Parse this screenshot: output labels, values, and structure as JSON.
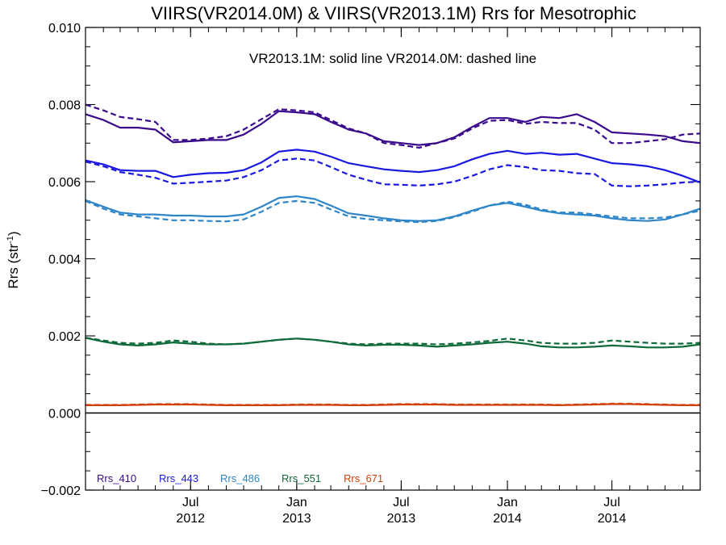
{
  "chart_data": {
    "type": "line",
    "title": "VIIRS(VR2014.0M) & VIIRS(VR2013.1M)  Rrs for Mesotrophic",
    "annotation": "VR2013.1M: solid line   VR2014.0M: dashed line",
    "ylabel_main": "Rrs (str",
    "ylabel_sup": "-1",
    "ylabel_close": ")",
    "xlim": [
      "2012-01-01",
      "2014-12-01"
    ],
    "ylim": [
      -0.002,
      0.01
    ],
    "yticks": [
      "0.010",
      "0.008",
      "0.006",
      "0.004",
      "0.002",
      "0.000",
      "−0.002"
    ],
    "xticks": [
      {
        "date": "2012-07-01",
        "month": "Jul",
        "year": "2012"
      },
      {
        "date": "2013-01-01",
        "month": "Jan",
        "year": "2013"
      },
      {
        "date": "2013-07-01",
        "month": "Jul",
        "year": "2013"
      },
      {
        "date": "2014-01-01",
        "month": "Jan",
        "year": "2014"
      },
      {
        "date": "2014-07-01",
        "month": "Jul",
        "year": "2014"
      }
    ],
    "zero_line": 0,
    "legend_placement": "bottom-left",
    "x": [
      "2012-01-01",
      "2012-02-01",
      "2012-03-01",
      "2012-04-01",
      "2012-05-01",
      "2012-06-01",
      "2012-07-01",
      "2012-08-01",
      "2012-09-01",
      "2012-10-01",
      "2012-11-01",
      "2012-12-01",
      "2013-01-01",
      "2013-02-01",
      "2013-03-01",
      "2013-04-01",
      "2013-05-01",
      "2013-06-01",
      "2013-07-01",
      "2013-08-01",
      "2013-09-01",
      "2013-10-01",
      "2013-11-01",
      "2013-12-01",
      "2014-01-01",
      "2014-02-01",
      "2014-03-01",
      "2014-04-01",
      "2014-05-01",
      "2014-06-01",
      "2014-07-01",
      "2014-08-01",
      "2014-09-01",
      "2014-10-01",
      "2014-11-01",
      "2014-12-01"
    ],
    "series": [
      {
        "name": "Rrs_410",
        "color": "#3a0a8c",
        "style": "solid",
        "values": [
          0.00775,
          0.0076,
          0.0074,
          0.0074,
          0.00735,
          0.00702,
          0.00705,
          0.00708,
          0.00708,
          0.00722,
          0.0075,
          0.00783,
          0.0078,
          0.00775,
          0.00755,
          0.00735,
          0.00725,
          0.00705,
          0.007,
          0.00695,
          0.007,
          0.00715,
          0.00742,
          0.00765,
          0.00765,
          0.00755,
          0.00768,
          0.00765,
          0.00775,
          0.00755,
          0.00728,
          0.00725,
          0.00722,
          0.00718,
          0.00705,
          0.007
        ]
      },
      {
        "name": "Rrs_410",
        "color": "#3a0a8c",
        "style": "dashed",
        "values": [
          0.008,
          0.00785,
          0.00768,
          0.00762,
          0.00755,
          0.00708,
          0.00708,
          0.00712,
          0.00718,
          0.00735,
          0.00762,
          0.00788,
          0.00785,
          0.0078,
          0.0076,
          0.00738,
          0.00725,
          0.007,
          0.00695,
          0.00688,
          0.007,
          0.00712,
          0.00738,
          0.00758,
          0.0076,
          0.0075,
          0.00755,
          0.00752,
          0.00752,
          0.00735,
          0.007,
          0.007,
          0.00705,
          0.0071,
          0.00722,
          0.00725
        ]
      },
      {
        "name": "Rrs_443",
        "color": "#1b18e0",
        "style": "solid",
        "values": [
          0.00655,
          0.00645,
          0.0063,
          0.00628,
          0.00628,
          0.00612,
          0.00618,
          0.00622,
          0.00623,
          0.0063,
          0.0065,
          0.00678,
          0.00683,
          0.00678,
          0.00665,
          0.00648,
          0.0064,
          0.00632,
          0.00628,
          0.00625,
          0.0063,
          0.0064,
          0.00658,
          0.00672,
          0.0068,
          0.00672,
          0.00675,
          0.0067,
          0.00672,
          0.0066,
          0.00648,
          0.00645,
          0.0064,
          0.0063,
          0.00615,
          0.00598
        ]
      },
      {
        "name": "Rrs_443",
        "color": "#1b18e0",
        "style": "dashed",
        "values": [
          0.00652,
          0.0064,
          0.00625,
          0.00618,
          0.0061,
          0.00595,
          0.00597,
          0.006,
          0.00603,
          0.00612,
          0.0063,
          0.00655,
          0.0066,
          0.00655,
          0.00638,
          0.00618,
          0.00605,
          0.00593,
          0.00592,
          0.0059,
          0.00593,
          0.006,
          0.00615,
          0.00632,
          0.00643,
          0.00638,
          0.0063,
          0.00628,
          0.00622,
          0.0062,
          0.0059,
          0.00588,
          0.0059,
          0.00593,
          0.00598,
          0.006
        ]
      },
      {
        "name": "Rrs_486",
        "color": "#2e86c8",
        "style": "solid",
        "values": [
          0.00552,
          0.00535,
          0.0052,
          0.00515,
          0.00515,
          0.00512,
          0.00512,
          0.0051,
          0.0051,
          0.00515,
          0.00535,
          0.00558,
          0.00562,
          0.00555,
          0.00538,
          0.00518,
          0.00512,
          0.00505,
          0.005,
          0.00498,
          0.005,
          0.0051,
          0.00525,
          0.00538,
          0.00545,
          0.00535,
          0.00525,
          0.00518,
          0.00515,
          0.00512,
          0.00505,
          0.005,
          0.00498,
          0.00502,
          0.00515,
          0.0053
        ]
      },
      {
        "name": "Rrs_486",
        "color": "#2e86c8",
        "style": "dashed",
        "values": [
          0.0055,
          0.0053,
          0.00515,
          0.0051,
          0.00505,
          0.005,
          0.005,
          0.00498,
          0.00497,
          0.00502,
          0.00522,
          0.00545,
          0.0055,
          0.00545,
          0.00528,
          0.0051,
          0.00503,
          0.005,
          0.00497,
          0.00495,
          0.00498,
          0.00508,
          0.00522,
          0.00538,
          0.00548,
          0.0054,
          0.00528,
          0.0052,
          0.0052,
          0.00515,
          0.0051,
          0.00505,
          0.00505,
          0.00507,
          0.00515,
          0.00525
        ]
      },
      {
        "name": "Rrs_551",
        "color": "#0e6a38",
        "style": "solid",
        "values": [
          0.00195,
          0.00185,
          0.00178,
          0.00175,
          0.00178,
          0.00183,
          0.0018,
          0.00178,
          0.00178,
          0.0018,
          0.00185,
          0.0019,
          0.00193,
          0.0019,
          0.00185,
          0.00178,
          0.00175,
          0.00177,
          0.00177,
          0.00175,
          0.00172,
          0.00175,
          0.00178,
          0.00182,
          0.00185,
          0.0018,
          0.00173,
          0.0017,
          0.0017,
          0.00172,
          0.00175,
          0.00173,
          0.0017,
          0.0017,
          0.00172,
          0.00178
        ]
      },
      {
        "name": "Rrs_551",
        "color": "#0e6a38",
        "style": "dashed",
        "values": [
          0.00195,
          0.00188,
          0.00182,
          0.0018,
          0.00182,
          0.00188,
          0.00185,
          0.0018,
          0.00178,
          0.0018,
          0.00185,
          0.0019,
          0.00193,
          0.0019,
          0.00185,
          0.0018,
          0.00178,
          0.0018,
          0.0018,
          0.0018,
          0.00178,
          0.0018,
          0.00183,
          0.00187,
          0.00193,
          0.00188,
          0.00182,
          0.0018,
          0.0018,
          0.00182,
          0.00188,
          0.00185,
          0.00182,
          0.0018,
          0.0018,
          0.00182
        ]
      },
      {
        "name": "Rrs_671",
        "color": "#d2410d",
        "style": "solid",
        "values": [
          0.0002,
          0.0002,
          0.0002,
          0.00021,
          0.00022,
          0.00022,
          0.00022,
          0.00021,
          0.0002,
          0.0002,
          0.0002,
          0.0002,
          0.00021,
          0.00021,
          0.00021,
          0.0002,
          0.0002,
          0.00021,
          0.00022,
          0.00022,
          0.00022,
          0.00021,
          0.00021,
          0.00021,
          0.00021,
          0.00021,
          0.00021,
          0.0002,
          0.00021,
          0.00022,
          0.00023,
          0.00023,
          0.00022,
          0.00021,
          0.0002,
          0.0002
        ]
      },
      {
        "name": "Rrs_671",
        "color": "#d2410d",
        "style": "dashed",
        "values": [
          0.00021,
          0.00021,
          0.00021,
          0.00022,
          0.00023,
          0.00023,
          0.00023,
          0.00022,
          0.00021,
          0.00021,
          0.00021,
          0.00021,
          0.00022,
          0.00022,
          0.00022,
          0.00021,
          0.00021,
          0.00022,
          0.00023,
          0.00023,
          0.00023,
          0.00022,
          0.00022,
          0.00022,
          0.00022,
          0.00022,
          0.00022,
          0.00021,
          0.00022,
          0.00023,
          0.00024,
          0.00024,
          0.00023,
          0.00022,
          0.00021,
          0.00021
        ]
      }
    ],
    "legend": [
      {
        "label": "Rrs_410",
        "color": "#3a0a8c"
      },
      {
        "label": "Rrs_443",
        "color": "#1b18e0"
      },
      {
        "label": "Rrs_486",
        "color": "#2e86c8"
      },
      {
        "label": "Rrs_551",
        "color": "#0e6a38"
      },
      {
        "label": "Rrs_671",
        "color": "#d2410d"
      }
    ]
  }
}
